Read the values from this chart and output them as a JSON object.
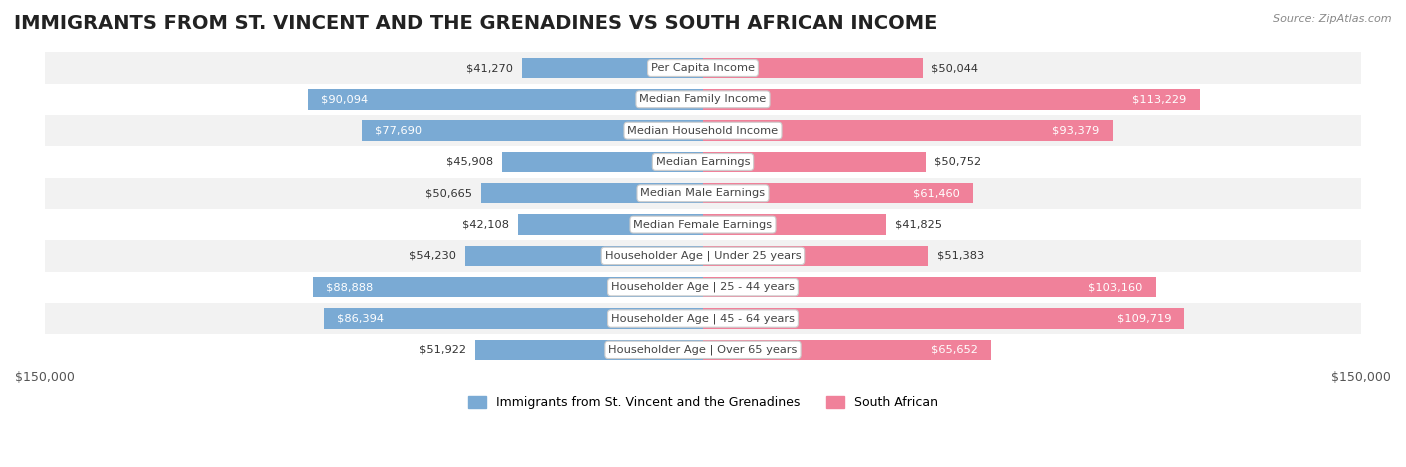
{
  "title": "IMMIGRANTS FROM ST. VINCENT AND THE GRENADINES VS SOUTH AFRICAN INCOME",
  "source": "Source: ZipAtlas.com",
  "categories": [
    "Per Capita Income",
    "Median Family Income",
    "Median Household Income",
    "Median Earnings",
    "Median Male Earnings",
    "Median Female Earnings",
    "Householder Age | Under 25 years",
    "Householder Age | 25 - 44 years",
    "Householder Age | 45 - 64 years",
    "Householder Age | Over 65 years"
  ],
  "left_values": [
    41270,
    90094,
    77690,
    45908,
    50665,
    42108,
    54230,
    88888,
    86394,
    51922
  ],
  "right_values": [
    50044,
    113229,
    93379,
    50752,
    61460,
    41825,
    51383,
    103160,
    109719,
    65652
  ],
  "left_labels": [
    "$41,270",
    "$90,094",
    "$77,690",
    "$45,908",
    "$50,665",
    "$42,108",
    "$54,230",
    "$88,888",
    "$86,394",
    "$51,922"
  ],
  "right_labels": [
    "$50,044",
    "$113,229",
    "$93,379",
    "$50,752",
    "$61,460",
    "$41,825",
    "$51,383",
    "$103,160",
    "$109,719",
    "$65,652"
  ],
  "max_value": 150000,
  "left_color": "#7aaad4",
  "right_color": "#f0819a",
  "left_color_dark": "#5b8fc4",
  "right_color_dark": "#e8607a",
  "bg_row_color": "#f2f2f2",
  "bg_alt_color": "#ffffff",
  "legend_left": "Immigrants from St. Vincent and the Grenadines",
  "legend_right": "South African",
  "bar_height": 0.65,
  "title_fontsize": 14,
  "label_fontsize": 9.5,
  "axis_label_fontsize": 9
}
